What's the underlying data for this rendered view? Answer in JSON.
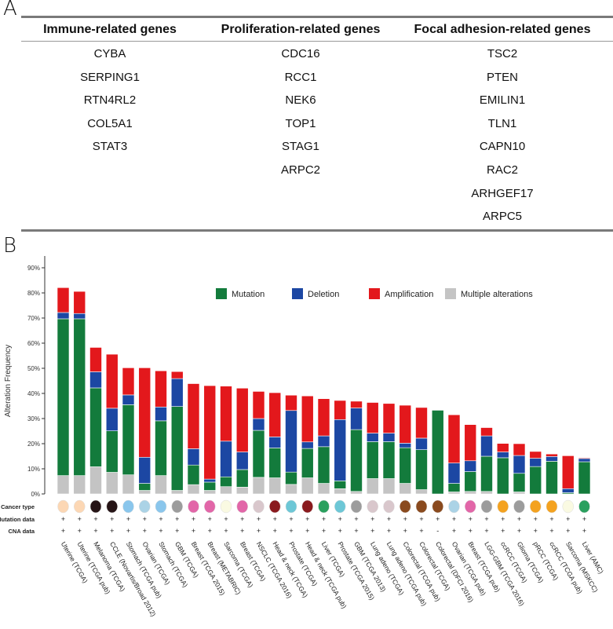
{
  "panel_a": {
    "letter": "A",
    "columns": [
      {
        "header": "Immune-related genes",
        "genes": [
          "CYBA",
          "SERPING1",
          "RTN4RL2",
          "COL5A1",
          "STAT3"
        ]
      },
      {
        "header": "Proliferation-related genes",
        "genes": [
          "CDC16",
          "RCC1",
          "NEK6",
          "TOP1",
          "STAG1",
          "ARPC2"
        ]
      },
      {
        "header": "Focal adhesion-related genes",
        "genes": [
          "TSC2",
          "PTEN",
          "EMILIN1",
          "TLN1",
          "CAPN10",
          "RAC2",
          "ARHGEF17",
          "ARPC5"
        ]
      }
    ]
  },
  "panel_b": {
    "letter": "B"
  },
  "chart_data": {
    "type": "bar",
    "stacked": true,
    "ylabel": "Alteration Frequency",
    "ylim": [
      0,
      90
    ],
    "yticks": [
      "0%",
      "10%",
      "20%",
      "30%",
      "40%",
      "50%",
      "60%",
      "70%",
      "80%",
      "90%"
    ],
    "legend_position": "top-right",
    "categories": [
      "Uterine (TCGA)",
      "Uterine (TCGA pub)",
      "Melanoma (TCGA)",
      "CCLE (Novartis/Broad 2012)",
      "Stomach (TCGA pub)",
      "Ovarian (TCGA)",
      "Stomach (TCGA)",
      "GBM (TCGA)",
      "Breast (TCGA 2015)",
      "Breast (METABRIC)",
      "Sarcoma (TCGA)",
      "Breast (TCGA)",
      "NSCLC (TCGA 2016)",
      "Head & neck (TCGA)",
      "Prostate (TCGA)",
      "Head & neck (TCGA pub)",
      "Liver (TCGA)",
      "Prostate (TCGA 2015)",
      "GBM (TCGA 2013)",
      "Lung adeno (TCGA)",
      "Lung adeno (TCGA pub)",
      "Colorectal (TCGA pub)",
      "Colorectal (TCGA)",
      "Colorectal (DFCI 2016)",
      "Ovarian (TCGA pub)",
      "Breast (TCGA pub)",
      "LGG-GBM (TCGA 2016)",
      "ccRCC (TCGA)",
      "Glioma (TCGA)",
      "pRCC (TCGA)",
      "ccRCC (TCGA pub)",
      "Sarcoma (MSKCC)",
      "Liver (AMC)"
    ],
    "series": [
      {
        "name": "Multiple alterations",
        "color": "#c4c4c4",
        "values": [
          7.3,
          7.3,
          10.8,
          8.6,
          7.6,
          1.4,
          7.3,
          1.4,
          3.7,
          1.4,
          2.9,
          2.7,
          6.6,
          6.4,
          3.8,
          6.4,
          4.2,
          2.1,
          1.0,
          6.1,
          6.1,
          4.2,
          1.7,
          0,
          0.8,
          1.0,
          1.0,
          0,
          0.8,
          0,
          0,
          0,
          0
        ]
      },
      {
        "name": "Mutation",
        "color": "#137b3c",
        "values": [
          62.4,
          62.4,
          31.4,
          16.5,
          27.9,
          2.8,
          21.8,
          33.4,
          7.8,
          3.3,
          3.9,
          7.0,
          18.7,
          11.9,
          4.9,
          11.7,
          14.6,
          3.1,
          24.6,
          14.7,
          14.7,
          14.2,
          15.9,
          33.3,
          3.4,
          7.9,
          14.0,
          14.4,
          7.4,
          10.9,
          13.0,
          0.5,
          12.8
        ]
      },
      {
        "name": "Deletion",
        "color": "#1c47a3",
        "values": [
          2.5,
          2.1,
          6.4,
          9.0,
          3.9,
          10.4,
          5.5,
          11.1,
          6.5,
          1.2,
          14.2,
          7.0,
          4.7,
          4.4,
          24.5,
          2.6,
          4.3,
          24.4,
          8.6,
          3.4,
          3.4,
          1.8,
          4.6,
          0,
          8.1,
          4.3,
          8.1,
          2.3,
          7.1,
          3.3,
          1.9,
          1.6,
          1.3
        ]
      },
      {
        "name": "Amplification",
        "color": "#e3181c",
        "values": [
          9.9,
          8.8,
          9.7,
          21.5,
          10.8,
          35.6,
          14.4,
          2.8,
          25.9,
          37.2,
          21.9,
          25.4,
          10.8,
          17.6,
          6.1,
          18.3,
          14.8,
          7.6,
          2.7,
          12.2,
          11.8,
          15.1,
          12.2,
          0,
          19.2,
          14.4,
          3.3,
          3.4,
          4.7,
          2.7,
          1.0,
          13.1,
          0.3
        ]
      }
    ],
    "legend_order": [
      "Mutation",
      "Deletion",
      "Amplification",
      "Multiple alterations"
    ],
    "annotation_rows": [
      {
        "label": "Cancer type",
        "type": "color",
        "values": [
          "#fcd7b4",
          "#fcd7b4",
          "#261416",
          "#261416",
          "#8ac6ec",
          "#abd3e6",
          "#8ac6ec",
          "#9c9c9c",
          "#e266a8",
          "#e266a8",
          "#fafae2",
          "#e266a8",
          "#d9c7cc",
          "#8a1a1e",
          "#6dc7d6",
          "#8a1a1e",
          "#2aa05e",
          "#6dc7d6",
          "#9c9c9c",
          "#d9c7cc",
          "#d9c7cc",
          "#8a4a1e",
          "#8a4a1e",
          "#8a4a1e",
          "#abd3e6",
          "#e266a8",
          "#9c9c9c",
          "#f4a21f",
          "#9c9c9c",
          "#f4a21f",
          "#f4a21f",
          "#fafae2",
          "#2aa05e"
        ]
      },
      {
        "label": "Mutation data",
        "type": "text",
        "values": [
          "+",
          "+",
          "+",
          "+",
          "+",
          "+",
          "+",
          "+",
          "+",
          "+",
          "+",
          "+",
          "+",
          "+",
          "+",
          "+",
          "+",
          "+",
          "+",
          "+",
          "+",
          "+",
          "+",
          "+",
          "+",
          "+",
          "+",
          "+",
          "+",
          "+",
          "+",
          "+",
          "+"
        ]
      },
      {
        "label": "CNA data",
        "type": "text",
        "values": [
          "+",
          "+",
          "+",
          "+",
          "+",
          "+",
          "+",
          "+",
          "+",
          "+",
          "+",
          "+",
          "+",
          "+",
          "+",
          "+",
          "+",
          "+",
          "+",
          "+",
          "+",
          "+",
          "+",
          "-",
          "+",
          "+",
          "+",
          "+",
          "+",
          "+",
          "+",
          "+",
          "+"
        ]
      }
    ]
  }
}
